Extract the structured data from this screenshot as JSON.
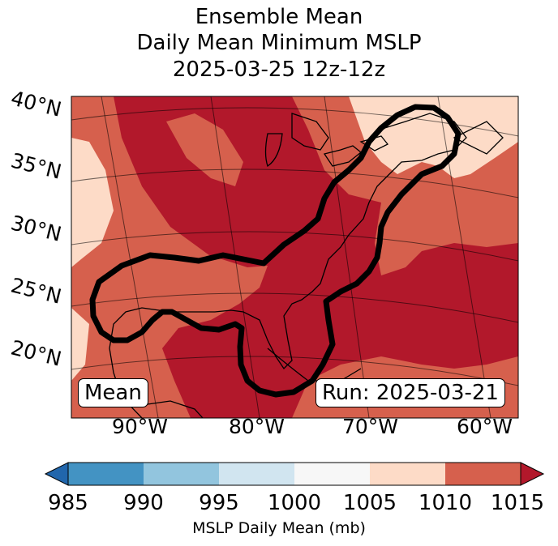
{
  "title": {
    "line1": "Ensemble Mean",
    "line2": "Daily Mean Minimum MSLP",
    "line3": "2025-03-25 12z-12z"
  },
  "map": {
    "lat_labels": [
      "40°N",
      "35°N",
      "30°N",
      "25°N",
      "20°N"
    ],
    "lon_labels": [
      "90°W",
      "80°W",
      "70°W",
      "60°W"
    ],
    "mean_label": "Mean",
    "run_label": "Run: 2025-03-21"
  },
  "colorbar": {
    "label": "MSLP Daily Mean (mb)",
    "ticks": [
      "985",
      "990",
      "995",
      "1000",
      "1005",
      "1010",
      "1015"
    ],
    "colors": [
      "#2166ac",
      "#4393c3",
      "#92c5de",
      "#d1e5f0",
      "#f7f7f7",
      "#fddbc7",
      "#d6604d",
      "#b2182b"
    ]
  }
}
